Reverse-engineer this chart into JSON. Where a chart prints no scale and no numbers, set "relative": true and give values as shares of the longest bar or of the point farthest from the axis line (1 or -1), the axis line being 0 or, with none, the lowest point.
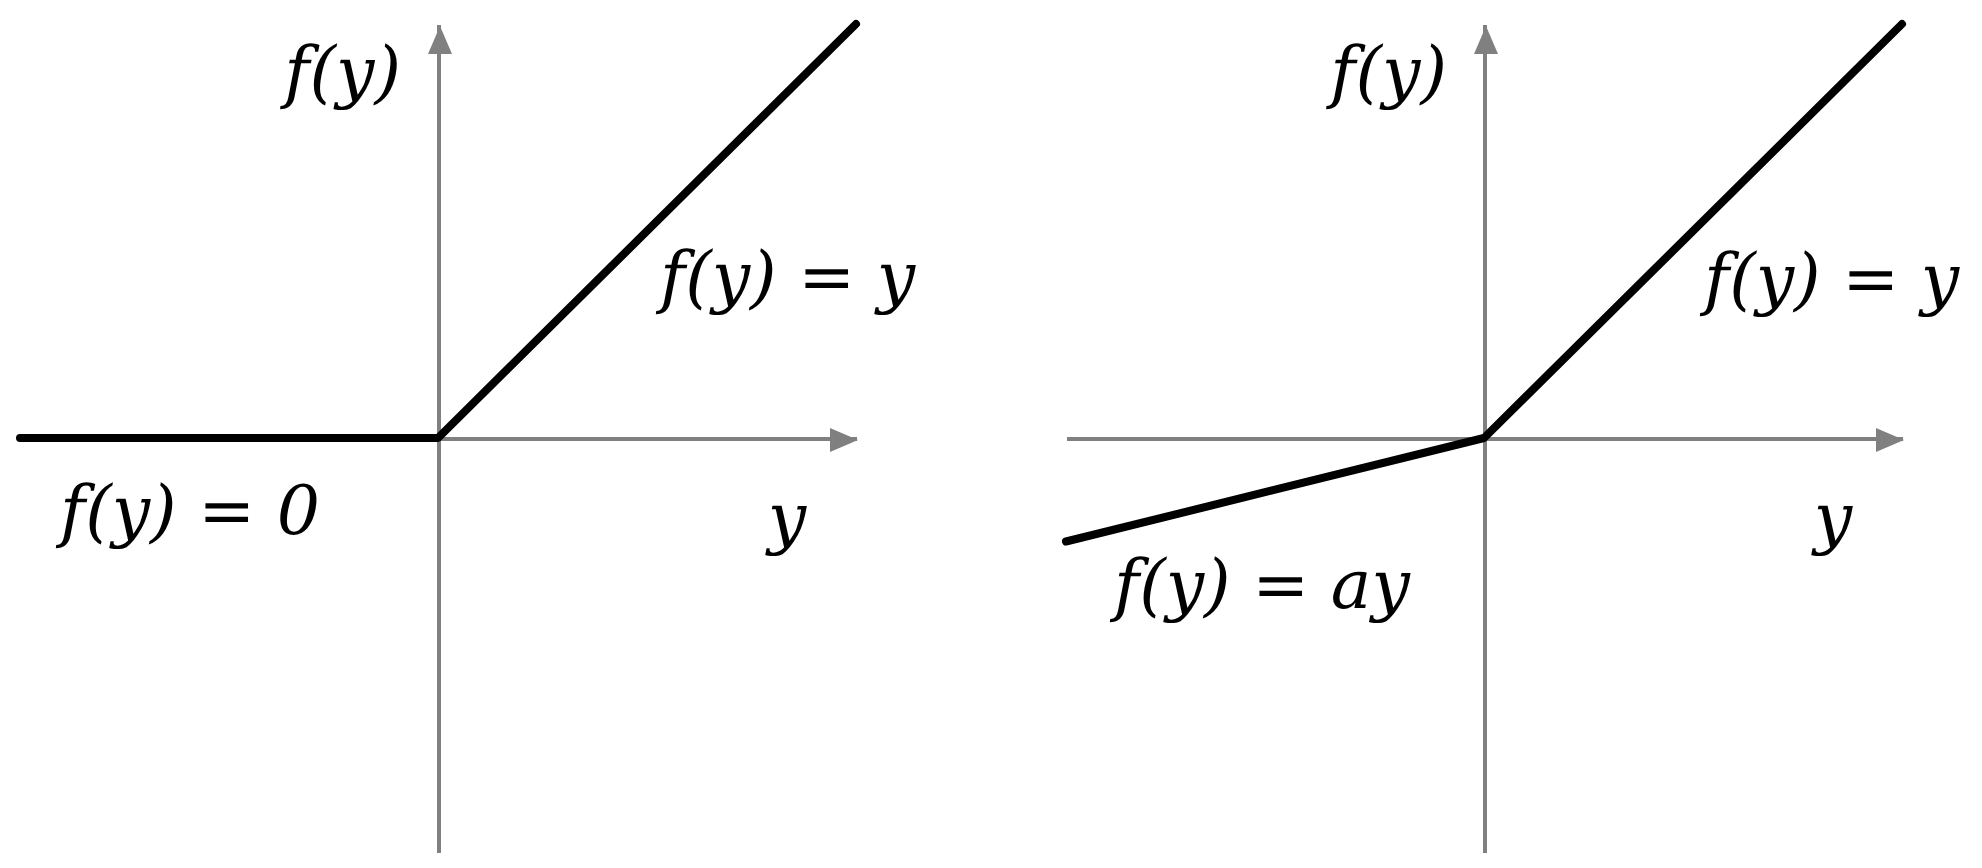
{
  "chart_data": [
    {
      "type": "line",
      "relative": true,
      "categories": [
        null,
        null,
        null
      ],
      "series": [
        {
          "color": "#000000",
          "values": [
            0,
            0,
            1
          ]
        }
      ],
      "xlabel": "y",
      "ylabel": "f(y)",
      "annotations": [
        "f(y) = y",
        "f(y) = 0"
      ],
      "tick_labels": false,
      "line_style": "solid"
    },
    {
      "type": "line",
      "relative": true,
      "categories": [
        null,
        null,
        null
      ],
      "series": [
        {
          "color": "#000000",
          "values": [
            -0.25,
            0,
            1
          ]
        }
      ],
      "xlabel": "y",
      "ylabel": "f(y)",
      "annotations": [
        "f(y) = y",
        "f(y) = ay"
      ],
      "tick_labels": false,
      "line_style": "solid"
    }
  ]
}
